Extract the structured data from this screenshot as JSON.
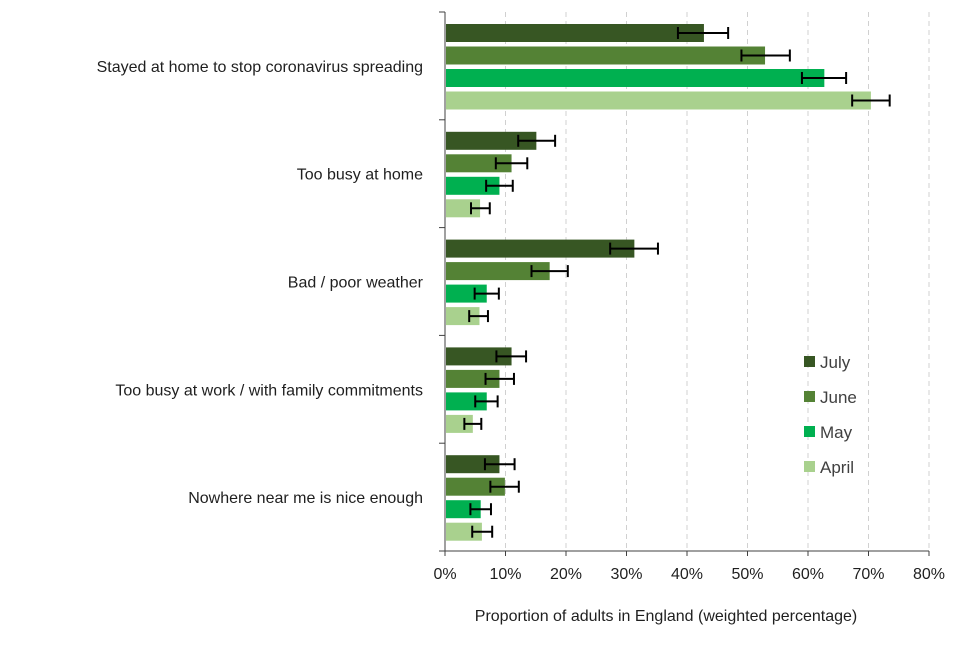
{
  "chart_data": {
    "type": "bar",
    "orientation": "horizontal",
    "title": "",
    "xlabel": "Proportion of adults in England (weighted percentage)",
    "ylabel": "",
    "xlim": [
      0,
      80
    ],
    "xticks": [
      0,
      10,
      20,
      30,
      40,
      50,
      60,
      70,
      80
    ],
    "tick_suffix": "%",
    "grid": "vertical dashed",
    "legend_position": "bottom-right",
    "categories": [
      "Stayed at home to stop coronavirus spreading",
      "Too busy at home",
      "Bad / poor weather",
      "Too busy at work / with family commitments",
      "Nowhere near me is nice enough"
    ],
    "series": [
      {
        "name": "July",
        "color": "#375623",
        "values": [
          42.8,
          15.1,
          31.3,
          11.0,
          9.0
        ],
        "errors": [
          [
            38.5,
            46.8
          ],
          [
            12.1,
            18.2
          ],
          [
            27.3,
            35.2
          ],
          [
            8.5,
            13.4
          ],
          [
            6.6,
            11.5
          ]
        ]
      },
      {
        "name": "June",
        "color": "#548235",
        "values": [
          52.9,
          11.0,
          17.3,
          9.0,
          9.9
        ],
        "errors": [
          [
            49.0,
            57.0
          ],
          [
            8.4,
            13.6
          ],
          [
            14.3,
            20.3
          ],
          [
            6.7,
            11.4
          ],
          [
            7.5,
            12.2
          ]
        ]
      },
      {
        "name": "May",
        "color": "#00b050",
        "values": [
          62.7,
          9.0,
          6.9,
          6.9,
          5.9
        ],
        "errors": [
          [
            59.0,
            66.3
          ],
          [
            6.8,
            11.2
          ],
          [
            4.9,
            8.9
          ],
          [
            5.0,
            8.7
          ],
          [
            4.2,
            7.6
          ]
        ]
      },
      {
        "name": "April",
        "color": "#a9d18e",
        "values": [
          70.4,
          5.8,
          5.7,
          4.6,
          6.1
        ],
        "errors": [
          [
            67.3,
            73.5
          ],
          [
            4.3,
            7.4
          ],
          [
            4.0,
            7.1
          ],
          [
            3.2,
            6.0
          ],
          [
            4.5,
            7.8
          ]
        ]
      }
    ]
  }
}
